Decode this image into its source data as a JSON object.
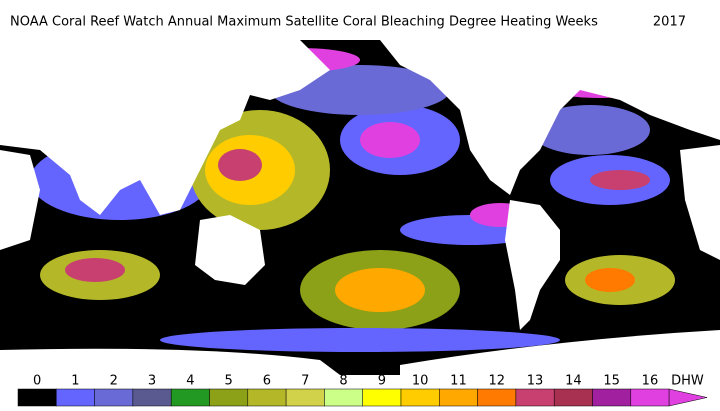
{
  "header": {
    "title": "NOAA Coral Reef Watch Annual Maximum Satellite Coral Bleaching Degree Heating Weeks",
    "year": "2017"
  },
  "legend": {
    "ticks": [
      0,
      1,
      2,
      3,
      4,
      5,
      6,
      7,
      8,
      9,
      10,
      11,
      12,
      13,
      14,
      15,
      16
    ],
    "unit": "DHW",
    "colors": [
      "#000000",
      "#6464ff",
      "#6a6ad6",
      "#5a5a90",
      "#229922",
      "#8ca018",
      "#b4b828",
      "#d2d24a",
      "#ccff88",
      "#ffff00",
      "#ffcc00",
      "#ffa800",
      "#ff7a00",
      "#c84070",
      "#a83050",
      "#a020a0",
      "#e040e0"
    ]
  }
}
